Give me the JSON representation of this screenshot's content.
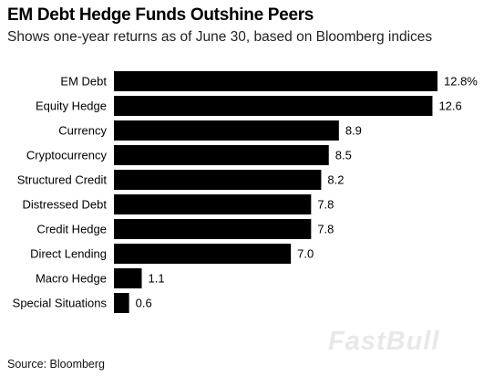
{
  "title": "EM Debt Hedge Funds Outshine Peers",
  "subtitle": "Shows one-year returns as of June 30, based on Bloomberg indices",
  "source": "Source: Bloomberg",
  "watermark": "FastBull",
  "colors": {
    "bar": "#000000",
    "text": "#000000",
    "background": "#ffffff"
  },
  "chart_data": {
    "type": "bar",
    "orientation": "horizontal",
    "title": "EM Debt Hedge Funds Outshine Peers",
    "subtitle": "Shows one-year returns as of June 30, based on Bloomberg indices",
    "categories": [
      "EM Debt",
      "Equity Hedge",
      "Currency",
      "Cryptocurrency",
      "Structured Credit",
      "Distressed Debt",
      "Credit Hedge",
      "Direct Lending",
      "Macro Hedge",
      "Special Situations"
    ],
    "values": [
      12.8,
      12.6,
      8.9,
      8.5,
      8.2,
      7.8,
      7.8,
      7.0,
      1.1,
      0.6
    ],
    "value_labels": [
      "12.8%",
      "12.6",
      "8.9",
      "8.5",
      "8.2",
      "7.8",
      "7.8",
      "7.0",
      "1.1",
      "0.6"
    ],
    "xlim": [
      0,
      12.8
    ],
    "grid": false,
    "legend": "none"
  }
}
